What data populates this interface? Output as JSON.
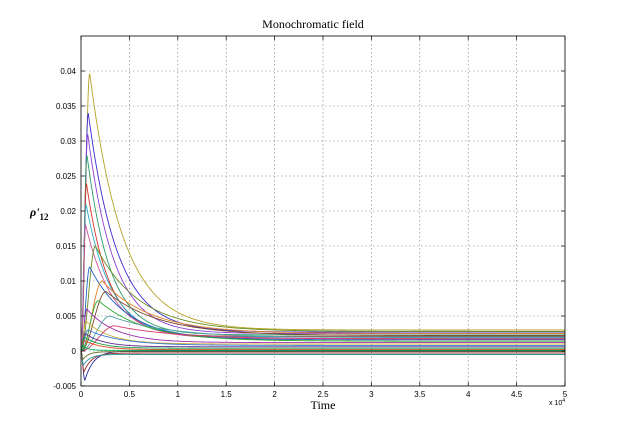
{
  "chart_data": {
    "type": "line",
    "title": "Monochromatic field",
    "xlabel": "Time",
    "ylabel": "ρ'",
    "ylabel_subscript": "12",
    "x_exponent_label": "x 10",
    "x_exponent_power": "4",
    "xlim": [
      0,
      50000
    ],
    "ylim": [
      -0.005,
      0.045
    ],
    "grid": true,
    "xticks": [
      0,
      5000,
      10000,
      15000,
      20000,
      25000,
      30000,
      35000,
      40000,
      45000,
      50000
    ],
    "xtick_labels": [
      "0",
      "0.5",
      "1",
      "1.5",
      "2",
      "2.5",
      "3",
      "3.5",
      "4",
      "4.5",
      "5"
    ],
    "yticks": [
      -0.005,
      0,
      0.005,
      0.01,
      0.015,
      0.02,
      0.025,
      0.03,
      0.035,
      0.04
    ],
    "ytick_labels": [
      "-0.005",
      "0",
      "0.005",
      "0.01",
      "0.015",
      "0.02",
      "0.025",
      "0.03",
      "0.035",
      "0.04"
    ],
    "series": [
      {
        "color": "#b5a227",
        "peak": 0.0397,
        "t_peak": 900,
        "rise": 260,
        "tau": 3400,
        "steady": 0.003
      },
      {
        "color": "#3a2ad1",
        "peak": 0.034,
        "t_peak": 750,
        "rise": 230,
        "tau": 3000,
        "steady": 0.0027
      },
      {
        "color": "#8e3fd6",
        "peak": 0.031,
        "t_peak": 700,
        "rise": 220,
        "tau": 2700,
        "steady": 0.0025
      },
      {
        "color": "#2e9a6b",
        "peak": 0.028,
        "t_peak": 620,
        "rise": 200,
        "tau": 2400,
        "steady": 0.0023
      },
      {
        "color": "#d1352a",
        "peak": 0.024,
        "t_peak": 560,
        "rise": 190,
        "tau": 2300,
        "steady": 0.0021
      },
      {
        "color": "#27a9c9",
        "peak": 0.021,
        "t_peak": 520,
        "rise": 180,
        "tau": 2600,
        "steady": 0.002
      },
      {
        "color": "#c7579e",
        "peak": 0.018,
        "t_peak": 480,
        "rise": 170,
        "tau": 2800,
        "steady": 0.0018
      },
      {
        "color": "#6b8e23",
        "peak": 0.015,
        "t_peak": 1500,
        "rise": 400,
        "tau": 4500,
        "steady": 0.0028
      },
      {
        "color": "#1f5fbf",
        "peak": 0.012,
        "t_peak": 900,
        "rise": 300,
        "tau": 3800,
        "steady": 0.0016
      },
      {
        "color": "#e0822a",
        "peak": 0.01,
        "t_peak": 2200,
        "rise": 600,
        "tau": 5000,
        "steady": 0.0025
      },
      {
        "color": "#7a4a2a",
        "peak": 0.0085,
        "t_peak": 2600,
        "rise": 700,
        "tau": 5500,
        "steady": 0.0022
      },
      {
        "color": "#2aa82a",
        "peak": 0.0072,
        "t_peak": 1800,
        "rise": 500,
        "tau": 4800,
        "steady": 0.0014
      },
      {
        "color": "#a02ab0",
        "peak": 0.006,
        "t_peak": 600,
        "rise": 200,
        "tau": 3000,
        "steady": 0.0012
      },
      {
        "color": "#4fa3a3",
        "peak": 0.005,
        "t_peak": 3000,
        "rise": 800,
        "tau": 6000,
        "steady": 0.0019
      },
      {
        "color": "#c9b23a",
        "peak": 0.0043,
        "t_peak": 500,
        "rise": 180,
        "tau": 2500,
        "steady": 0.001
      },
      {
        "color": "#d83a6b",
        "peak": 0.0036,
        "t_peak": 3500,
        "rise": 900,
        "tau": 6500,
        "steady": 0.0017
      },
      {
        "color": "#3a7ad8",
        "peak": 0.003,
        "t_peak": 700,
        "rise": 250,
        "tau": 3500,
        "steady": 0.0008
      },
      {
        "color": "#5c2a8e",
        "peak": 0.0025,
        "t_peak": 400,
        "rise": 150,
        "tau": 2000,
        "steady": 0.0006
      },
      {
        "color": "#1a9a4a",
        "peak": 0.002,
        "t_peak": 300,
        "rise": 120,
        "tau": 1800,
        "steady": 0.0004
      },
      {
        "color": "#e04a1a",
        "peak": 0.0015,
        "t_peak": 350,
        "rise": 120,
        "tau": 1800,
        "steady": 0.0002
      },
      {
        "color": "#2a2a9a",
        "peak": -0.0042,
        "t_peak": 400,
        "rise": 150,
        "tau": 900,
        "steady": 0.0
      },
      {
        "color": "#9a2a2a",
        "peak": -0.003,
        "t_peak": 300,
        "rise": 120,
        "tau": 800,
        "steady": -0.0003
      },
      {
        "color": "#2a9a9a",
        "peak": -0.002,
        "t_peak": 250,
        "rise": 100,
        "tau": 700,
        "steady": -0.0005
      },
      {
        "color": "#6a6a2a",
        "peak": -0.0012,
        "t_peak": 200,
        "rise": 90,
        "tau": 600,
        "steady": -0.0001
      },
      {
        "color": "#00b050",
        "peak": 0.0008,
        "t_peak": 200,
        "rise": 80,
        "tau": 500,
        "steady": 0.0001
      }
    ]
  }
}
